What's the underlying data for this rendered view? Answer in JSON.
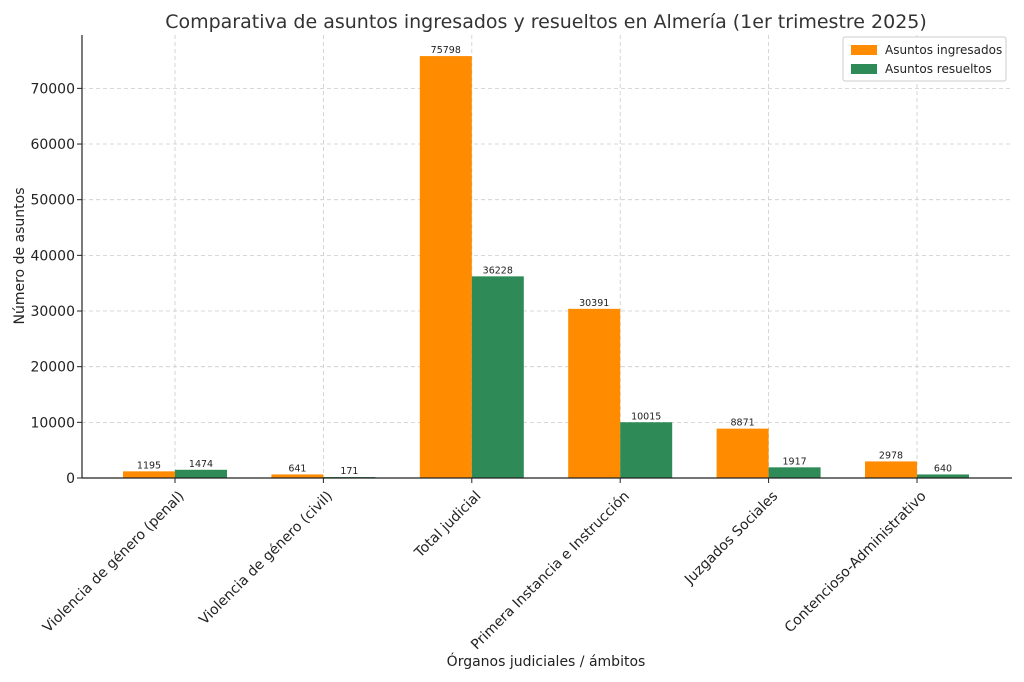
{
  "chart_data": {
    "type": "bar",
    "title": "Comparativa de asuntos ingresados y resueltos en Almería (1er trimestre 2025)",
    "xlabel": "Órganos judiciales / ámbitos",
    "ylabel": "Número de asuntos",
    "categories": [
      "Violencia de género (penal)",
      "Violencia de género (civil)",
      "Total judicial",
      "Primera Instancia e Instrucción",
      "Juzgados Sociales",
      "Contencioso-Administrativo"
    ],
    "series": [
      {
        "name": "Asuntos ingresados",
        "color": "#ff8c00",
        "values": [
          1195,
          641,
          75798,
          30391,
          8871,
          2978
        ]
      },
      {
        "name": "Asuntos resueltos",
        "color": "#2e8b57",
        "values": [
          1474,
          171,
          36228,
          10015,
          1917,
          640
        ]
      }
    ],
    "yticks": [
      0,
      10000,
      20000,
      30000,
      40000,
      50000,
      60000,
      70000
    ],
    "ylim": [
      0,
      79588
    ],
    "grid": true,
    "legend_position": "top-right"
  }
}
